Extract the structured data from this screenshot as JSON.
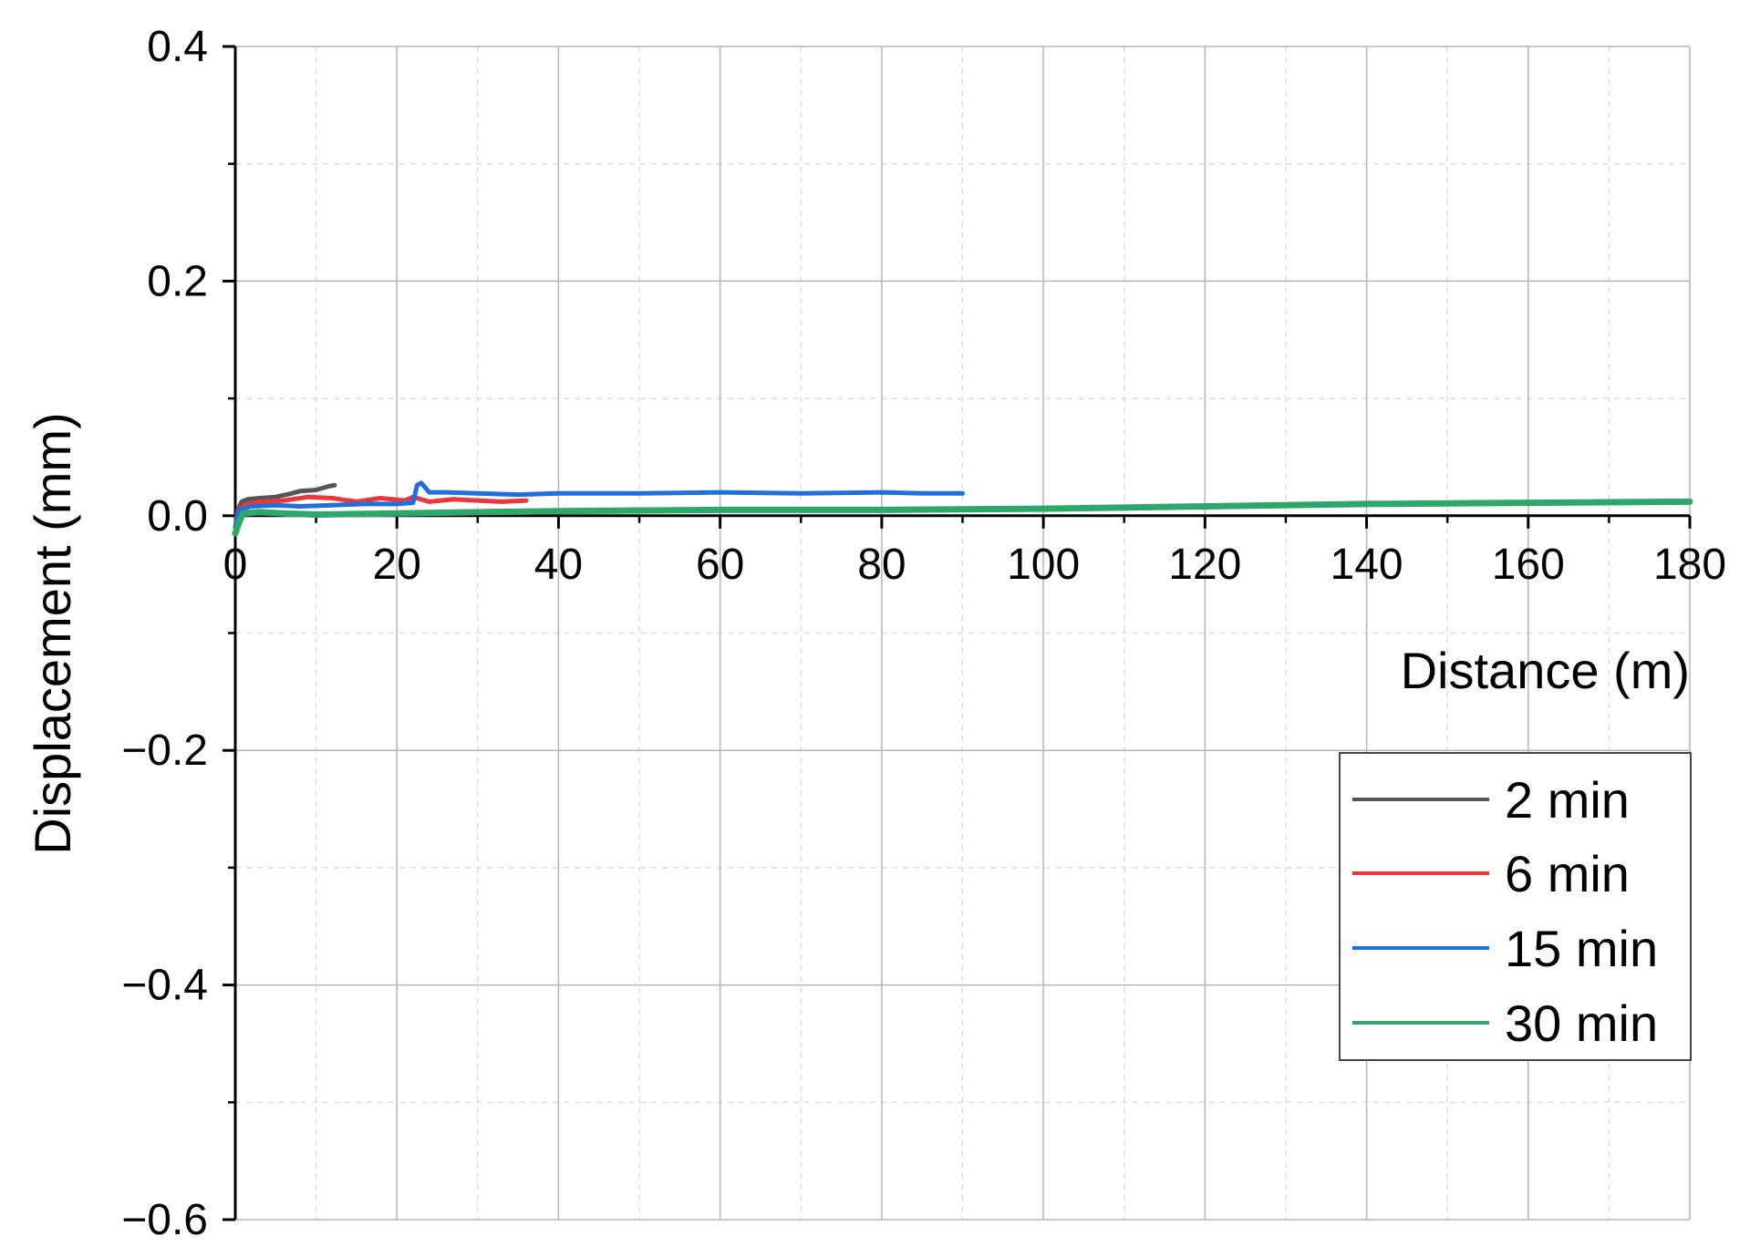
{
  "chart_data": {
    "type": "line",
    "title": "",
    "xlabel": "Distance (m)",
    "ylabel": "Displacement (mm)",
    "xlim": [
      0,
      180
    ],
    "ylim": [
      -0.6,
      0.4
    ],
    "xticks": [
      0,
      20,
      40,
      60,
      80,
      100,
      120,
      140,
      160,
      180
    ],
    "xtick_labels": [
      "0",
      "20",
      "40",
      "60",
      "80",
      "100",
      "120",
      "140",
      "160",
      "180"
    ],
    "yticks": [
      -0.6,
      -0.4,
      -0.2,
      0.0,
      0.2,
      0.4
    ],
    "ytick_labels": [
      "−0.6",
      "−0.4",
      "−0.2",
      "0.0",
      "0.2",
      "0.4"
    ],
    "grid": true,
    "legend_position": "bottom-right",
    "series": [
      {
        "name": "2 min",
        "color": "#555555",
        "x": [
          0,
          0.3,
          0.8,
          1.5,
          3,
          5,
          7,
          8,
          10,
          11.5,
          12.3
        ],
        "y": [
          -0.01,
          0.005,
          0.012,
          0.014,
          0.015,
          0.016,
          0.019,
          0.021,
          0.022,
          0.025,
          0.026
        ]
      },
      {
        "name": "6 min",
        "color": "#e8383b",
        "x": [
          0,
          0.5,
          1.5,
          3,
          6,
          9,
          12,
          15,
          18,
          21,
          22,
          24,
          27,
          30,
          33,
          36
        ],
        "y": [
          -0.01,
          0.006,
          0.01,
          0.012,
          0.013,
          0.016,
          0.015,
          0.012,
          0.015,
          0.013,
          0.016,
          0.012,
          0.014,
          0.013,
          0.012,
          0.013
        ]
      },
      {
        "name": "15 min",
        "color": "#1f6fe0",
        "x": [
          0,
          0.5,
          2,
          5,
          8,
          12,
          16,
          20,
          22,
          22.5,
          23,
          24,
          26,
          30,
          35,
          40,
          50,
          60,
          70,
          80,
          85,
          90
        ],
        "y": [
          -0.01,
          0.005,
          0.008,
          0.009,
          0.008,
          0.009,
          0.01,
          0.01,
          0.011,
          0.026,
          0.028,
          0.02,
          0.02,
          0.019,
          0.018,
          0.019,
          0.019,
          0.02,
          0.019,
          0.02,
          0.019,
          0.019
        ]
      },
      {
        "name": "30 min",
        "color": "#2ea86a",
        "x": [
          0,
          0.5,
          1,
          3,
          6,
          10,
          20,
          30,
          40,
          60,
          80,
          100,
          120,
          140,
          160,
          180
        ],
        "y": [
          -0.015,
          -0.005,
          0.002,
          0.003,
          0.002,
          0.001,
          0.002,
          0.003,
          0.004,
          0.005,
          0.005,
          0.006,
          0.008,
          0.01,
          0.011,
          0.012
        ]
      }
    ]
  }
}
